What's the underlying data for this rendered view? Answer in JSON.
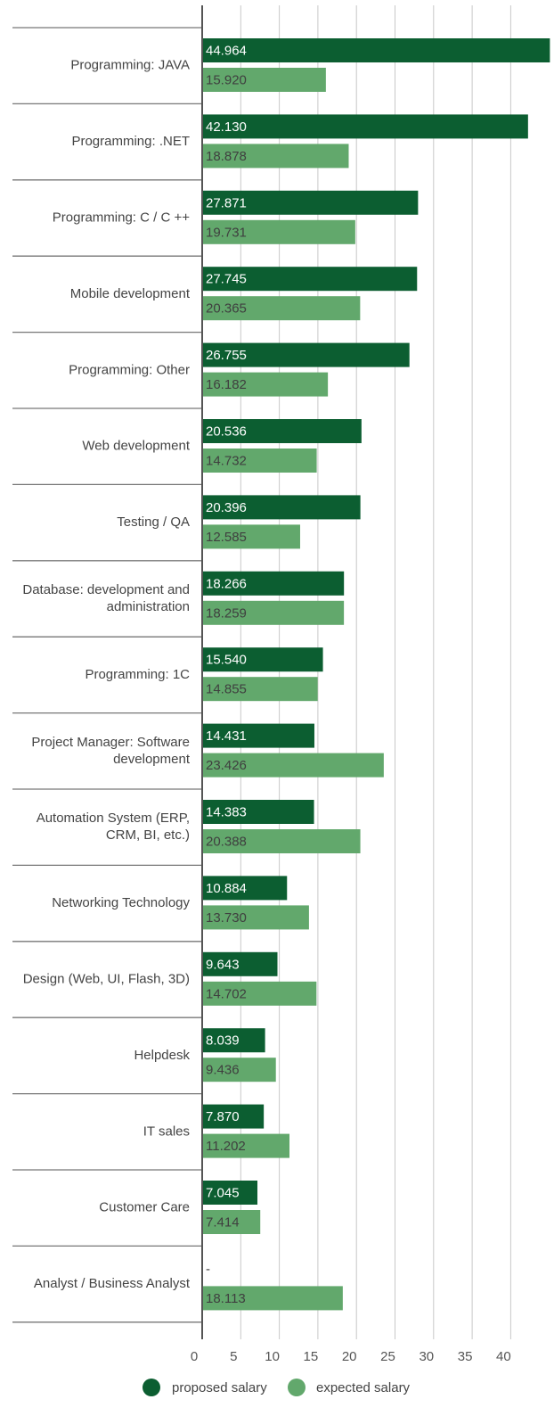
{
  "chart_data": {
    "type": "bar",
    "orientation": "horizontal",
    "title": "",
    "xlabel": "",
    "ylabel": "",
    "xlim": [
      0,
      45
    ],
    "ticks": [
      "0",
      "5",
      "10",
      "15",
      "20",
      "25",
      "30",
      "35",
      "40"
    ],
    "grid": true,
    "legend_position": "bottom",
    "categories": [
      [
        "Programming: JAVA"
      ],
      [
        "Programming: .NET"
      ],
      [
        "Programming: C / C ++"
      ],
      [
        "Mobile development"
      ],
      [
        "Programming: Other"
      ],
      [
        "Web development"
      ],
      [
        "Testing / QA"
      ],
      [
        "Database: development and",
        "administration"
      ],
      [
        "Programming: 1C"
      ],
      [
        "Project Manager: Software",
        "development"
      ],
      [
        "Automation System (ERP,",
        "CRM, BI, etc.)"
      ],
      [
        "Networking Technology"
      ],
      [
        "Design (Web, UI, Flash, 3D)"
      ],
      [
        "Helpdesk"
      ],
      [
        "IT sales"
      ],
      [
        "Customer Care"
      ],
      [
        "Analyst / Business Analyst"
      ]
    ],
    "series": [
      {
        "name": "proposed salary",
        "color": "#0c5e31",
        "values": [
          44.964,
          42.13,
          27.871,
          27.745,
          26.755,
          20.536,
          20.396,
          18.266,
          15.54,
          14.431,
          14.383,
          10.884,
          9.643,
          8.039,
          7.87,
          7.045,
          null
        ],
        "labels": [
          "44.964",
          "42.130",
          "27.871",
          "27.745",
          "26.755",
          "20.536",
          "20.396",
          "18.266",
          "15.540",
          "14.431",
          "14.383",
          "10.884",
          "9.643",
          "8.039",
          "7.870",
          "7.045",
          "-"
        ]
      },
      {
        "name": "expected salary",
        "color": "#62a86c",
        "values": [
          15.92,
          18.878,
          19.731,
          20.365,
          16.182,
          14.732,
          12.585,
          18.259,
          14.855,
          23.426,
          20.388,
          13.73,
          14.702,
          9.436,
          11.202,
          7.414,
          18.113
        ],
        "labels": [
          "15.920",
          "18.878",
          "19.731",
          "20.365",
          "16.182",
          "14.732",
          "12.585",
          "18.259",
          "14.855",
          "23.426",
          "20.388",
          "13.730",
          "14.702",
          "9.436",
          "11.202",
          "7.414",
          "18.113"
        ]
      }
    ]
  }
}
